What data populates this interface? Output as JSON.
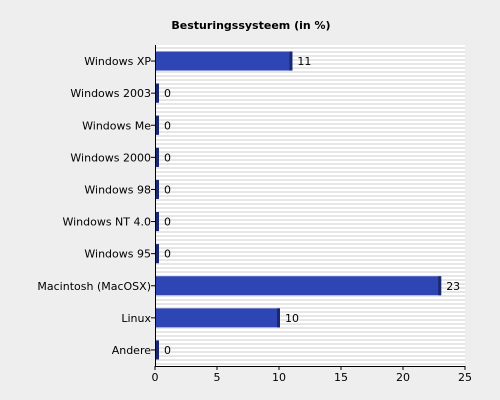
{
  "chart_data": {
    "type": "bar",
    "orientation": "horizontal",
    "title": "Besturingssysteem (in %)",
    "categories": [
      "Windows XP",
      "Windows 2003",
      "Windows Me",
      "Windows 2000",
      "Windows 98",
      "Windows NT 4.0",
      "Windows 95",
      "Macintosh (MacOSX)",
      "Linux",
      "Andere"
    ],
    "values": [
      11,
      0,
      0,
      0,
      0,
      0,
      0,
      23,
      10,
      0
    ],
    "value_labels": [
      "11",
      "0",
      "0",
      "0",
      "0",
      "0",
      "0",
      "23",
      "10",
      "0"
    ],
    "xlim": [
      0,
      25
    ],
    "xticks": [
      "0",
      "5",
      "10",
      "15",
      "20",
      "25"
    ],
    "grid": "horizontal stripes",
    "colors": {
      "bar": "#2e45b4",
      "bar_edge": "#1a2870",
      "plot_bg": "#ffffff",
      "stripe": "#e6e6e6",
      "page_bg": "#eeeeee"
    }
  }
}
